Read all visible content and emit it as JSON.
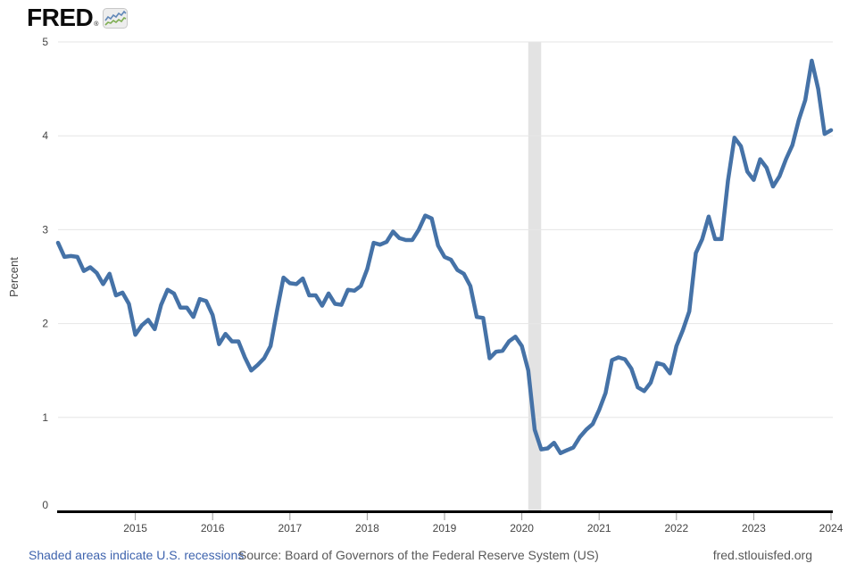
{
  "branding": {
    "logo_text": "FRED",
    "registered_mark": "®",
    "logo_icon": "fred-sparkline-icon"
  },
  "chart_data": {
    "type": "line",
    "title": "",
    "xlabel": "",
    "ylabel": "Percent",
    "frequency": "monthly",
    "x_start": "2014-01",
    "x_end": "2024-01",
    "x_tick_labels": [
      "2015",
      "2016",
      "2017",
      "2018",
      "2019",
      "2020",
      "2021",
      "2022",
      "2023",
      "2024"
    ],
    "y_ticks": [
      0,
      1,
      2,
      3,
      4,
      5
    ],
    "ylim": [
      0,
      5
    ],
    "grid": "horizontal",
    "legend": "none",
    "line_color": "#4572a7",
    "recession_color": "#e3e3e3",
    "recession_bands": [
      {
        "start": "2020-02",
        "end": "2020-04"
      }
    ],
    "values": [
      2.86,
      2.71,
      2.72,
      2.71,
      2.56,
      2.6,
      2.54,
      2.42,
      2.53,
      2.3,
      2.33,
      2.21,
      1.88,
      1.98,
      2.04,
      1.94,
      2.2,
      2.36,
      2.32,
      2.17,
      2.17,
      2.07,
      2.26,
      2.24,
      2.09,
      1.78,
      1.89,
      1.81,
      1.81,
      1.64,
      1.5,
      1.56,
      1.63,
      1.76,
      2.14,
      2.49,
      2.43,
      2.42,
      2.48,
      2.3,
      2.3,
      2.19,
      2.32,
      2.21,
      2.2,
      2.36,
      2.35,
      2.4,
      2.58,
      2.86,
      2.84,
      2.87,
      2.98,
      2.91,
      2.89,
      2.89,
      3.0,
      3.15,
      3.12,
      2.83,
      2.71,
      2.68,
      2.57,
      2.53,
      2.4,
      2.07,
      2.06,
      1.63,
      1.7,
      1.71,
      1.81,
      1.86,
      1.76,
      1.5,
      0.87,
      0.66,
      0.67,
      0.73,
      0.62,
      0.65,
      0.68,
      0.79,
      0.87,
      0.93,
      1.08,
      1.26,
      1.61,
      1.64,
      1.62,
      1.52,
      1.32,
      1.28,
      1.37,
      1.58,
      1.56,
      1.47,
      1.76,
      1.93,
      2.13,
      2.75,
      2.9,
      3.14,
      2.9,
      2.9,
      3.52,
      3.98,
      3.89,
      3.62,
      3.53,
      3.75,
      3.66,
      3.46,
      3.57,
      3.75,
      3.9,
      4.17,
      4.38,
      4.8,
      4.5,
      4.02,
      4.06
    ]
  },
  "footer": {
    "recession_note": "Shaded areas indicate U.S. recessions",
    "source": "Source: Board of Governors of the Federal Reserve System (US)",
    "site": "fred.stlouisfed.org"
  }
}
